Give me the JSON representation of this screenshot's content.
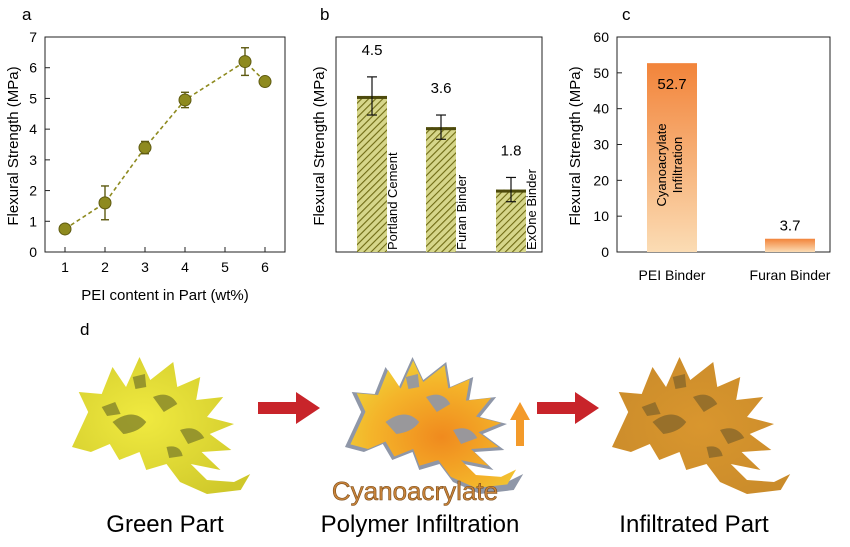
{
  "colors": {
    "olive": "#8e8a1f",
    "olive_dark": "#5e5a10",
    "hatch_light": "#d8d890",
    "orange_top": "#f2843a",
    "orange_bottom": "#fbd9ae",
    "arrow_red": "#c8242a",
    "arrow_orange": "#f39a2a",
    "cyan_text": "#c9843b"
  },
  "panels": {
    "a": "a",
    "b": "b",
    "c": "c",
    "d": "d"
  },
  "chart_data": [
    {
      "type": "scatter",
      "panel": "a",
      "xlabel": "PEI content in Part (wt%)",
      "ylabel": "Flexural Strength (MPa)",
      "xlim": [
        0.5,
        6.5
      ],
      "ylim": [
        0,
        7
      ],
      "xticks": [
        "1",
        "2",
        "3",
        "4",
        "5",
        "6"
      ],
      "yticks": [
        "0",
        "1",
        "2",
        "3",
        "4",
        "5",
        "6",
        "7"
      ],
      "points": [
        {
          "x": 1.0,
          "y": 0.75,
          "err": 0.0
        },
        {
          "x": 2.0,
          "y": 1.6,
          "err": 0.55
        },
        {
          "x": 3.0,
          "y": 3.4,
          "err": 0.2
        },
        {
          "x": 4.0,
          "y": 4.95,
          "err": 0.25
        },
        {
          "x": 5.5,
          "y": 6.2,
          "err": 0.45
        },
        {
          "x": 6.0,
          "y": 5.55,
          "err": 0.0
        }
      ],
      "trend": "dashed"
    },
    {
      "type": "bar",
      "panel": "b",
      "ylabel": "Flexural Strength (MPa)",
      "ylim": [
        0,
        6.2
      ],
      "categories": [
        "Portland Cement",
        "Furan Binder",
        "ExOne Binder"
      ],
      "values": [
        4.5,
        3.6,
        1.8
      ],
      "value_labels": [
        "4.5",
        "3.6",
        "1.8"
      ],
      "errors": [
        0.55,
        0.35,
        0.35
      ]
    },
    {
      "type": "bar",
      "panel": "c",
      "ylabel": "Flexural Strength (MPa)",
      "ylim": [
        0,
        60
      ],
      "yticks": [
        "0",
        "10",
        "20",
        "30",
        "40",
        "50",
        "60"
      ],
      "categories": [
        "PEI Binder",
        "Furan Binder"
      ],
      "values": [
        52.7,
        3.7
      ],
      "value_labels": [
        "52.7",
        "3.7"
      ],
      "bar_annotation": [
        "Cyanoacrylate",
        "Infiltration"
      ]
    }
  ],
  "process": {
    "captions": [
      "Green Part",
      "Polymer Infiltration",
      "Infiltrated Part"
    ],
    "agent_label": "Cyanoacrylate"
  }
}
